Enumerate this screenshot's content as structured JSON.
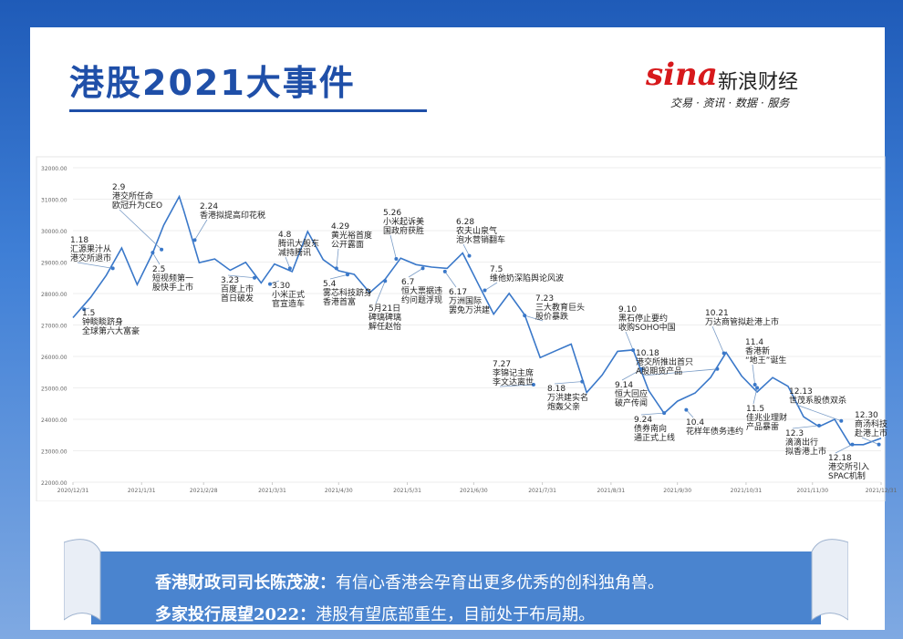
{
  "header": {
    "title": "港股2021大事件",
    "brand_logo": "sina",
    "brand": "新浪财经",
    "brand_tagline": "交易 · 资讯 · 数据 · 服务"
  },
  "chart_data": {
    "type": "line",
    "color": "#3a78c9",
    "x": [
      "2020/12/31",
      "2021/1/8",
      "2021/1/15",
      "2021/1/22",
      "2021/1/29",
      "2021/2/5",
      "2021/2/10",
      "2021/2/17",
      "2021/2/19",
      "2021/2/26",
      "2021/3/5",
      "2021/3/12",
      "2021/3/19",
      "2021/3/26",
      "2021/4/1",
      "2021/4/9",
      "2021/4/16",
      "2021/4/23",
      "2021/4/30",
      "2021/5/7",
      "2021/5/14",
      "2021/5/21",
      "2021/5/28",
      "2021/6/4",
      "2021/6/11",
      "2021/6/18",
      "2021/6/25",
      "2021/7/2",
      "2021/7/9",
      "2021/7/16",
      "2021/7/23",
      "2021/7/30",
      "2021/8/6",
      "2021/8/13",
      "2021/8/20",
      "2021/8/27",
      "2021/9/3",
      "2021/9/10",
      "2021/9/17",
      "2021/9/24",
      "2021/9/30",
      "2021/10/8",
      "2021/10/15",
      "2021/10/22",
      "2021/10/29",
      "2021/11/5",
      "2021/11/12",
      "2021/11/19",
      "2021/11/26",
      "2021/12/3",
      "2021/12/10",
      "2021/12/17",
      "2021/12/23",
      "2021/12/31"
    ],
    "values": [
      27231,
      27878,
      28573,
      29447,
      28284,
      29289,
      30173,
      31085,
      30644,
      28980,
      29098,
      28740,
      28990,
      28336,
      28939,
      28699,
      29970,
      29078,
      28725,
      28610,
      28027,
      28458,
      29124,
      28918,
      28842,
      28801,
      29288,
      28310,
      27344,
      28004,
      27321,
      25961,
      26179,
      26391,
      24849,
      25407,
      26163,
      26205,
      24920,
      24192,
      24576,
      24838,
      25331,
      26126,
      25377,
      24870,
      25327,
      25049,
      24080,
      23767,
      24000,
      23193,
      23193,
      23398
    ],
    "xlim": [
      "2020/12/31",
      "2021/12/31"
    ],
    "xticks": [
      "2020/12/31",
      "2021/1/31",
      "2021/2/28",
      "2021/3/31",
      "2021/4/30",
      "2021/5/31",
      "2021/6/30",
      "2021/7/31",
      "2021/8/31",
      "2021/9/30",
      "2021/10/31",
      "2021/11/30",
      "2021/12/31"
    ],
    "ylim": [
      22000,
      32000
    ],
    "yticks": [
      {
        "value": 22000,
        "label": "22000.00"
      },
      {
        "value": 23000,
        "label": "23000.00"
      },
      {
        "value": 24000,
        "label": "24000.00"
      },
      {
        "value": 25000,
        "label": "25000.00"
      },
      {
        "value": 26000,
        "label": "26000.00"
      },
      {
        "value": 27000,
        "label": "27000.00"
      },
      {
        "value": 28000,
        "label": "28000.00"
      },
      {
        "value": 29000,
        "label": "29000.00"
      },
      {
        "value": 30000,
        "label": "30000.00"
      },
      {
        "value": 31000,
        "label": "31000.00"
      },
      {
        "value": 32000,
        "label": "32000.00"
      }
    ],
    "grid": true,
    "annotations": [
      {
        "x": "2021/1/5",
        "y": 27500,
        "text": [
          "1.5",
          "钟睒睒跻身",
          "全球第六大富豪"
        ]
      },
      {
        "x": "2021/1/18",
        "y": 28800,
        "text": [
          "1.18",
          "汇源果汁从",
          "港交所退市"
        ]
      },
      {
        "x": "2021/2/9",
        "y": 29400,
        "text": [
          "2.9",
          "港交所任命",
          "欧冠升为CEO"
        ]
      },
      {
        "x": "2021/2/5",
        "y": 29300,
        "text": [
          "2.5",
          "短视频第一",
          "股快手上市"
        ]
      },
      {
        "x": "2021/2/24",
        "y": 29700,
        "text": [
          "2.24",
          "香港拟提高印花税"
        ]
      },
      {
        "x": "2021/3/23",
        "y": 28500,
        "text": [
          "3.23",
          "百度上市",
          "首日破发"
        ]
      },
      {
        "x": "2021/3/30",
        "y": 28300,
        "text": [
          "3.30",
          "小米正式",
          "官宣造车"
        ]
      },
      {
        "x": "2021/4/8",
        "y": 28800,
        "text": [
          "4.8",
          "腾讯大股东",
          "减持腾讯"
        ]
      },
      {
        "x": "2021/4/29",
        "y": 28800,
        "text": [
          "4.29",
          "黄光裕首度",
          "公开露面"
        ]
      },
      {
        "x": "2021/5/4",
        "y": 28600,
        "text": [
          "5.4",
          "雾芯科技跻身",
          "香港首富"
        ]
      },
      {
        "x": "2021/5/21",
        "y": 28400,
        "text": [
          "5月21日",
          "碑璃碑璃",
          "解任赵怡"
        ]
      },
      {
        "x": "2021/5/26",
        "y": 29100,
        "text": [
          "5.26",
          "小米起诉美",
          "国政府获胜"
        ]
      },
      {
        "x": "2021/6/7",
        "y": 28800,
        "text": [
          "6.7",
          "恒大票据违",
          "约问题浮现"
        ]
      },
      {
        "x": "2021/6/17",
        "y": 28700,
        "text": [
          "6.17",
          "万洲国际",
          "罢免万洪建"
        ]
      },
      {
        "x": "2021/6/28",
        "y": 29200,
        "text": [
          "6.28",
          "农夫山泉气",
          "泡水营销翻车"
        ]
      },
      {
        "x": "2021/7/5",
        "y": 28100,
        "text": [
          "7.5",
          "维他奶深陷舆论风波"
        ]
      },
      {
        "x": "2021/7/23",
        "y": 27300,
        "text": [
          "7.23",
          "三大教育巨头",
          "股价暴跌"
        ]
      },
      {
        "x": "2021/7/27",
        "y": 25100,
        "text": [
          "7.27",
          "李锦记主席",
          "李文达离世"
        ]
      },
      {
        "x": "2021/8/18",
        "y": 25200,
        "text": [
          "8.18",
          "万洪建实名",
          "炮轰父亲"
        ]
      },
      {
        "x": "2021/9/10",
        "y": 26200,
        "text": [
          "9.10",
          "黑石停止要约",
          "收购SOHO中国"
        ]
      },
      {
        "x": "2021/9/14",
        "y": 25600,
        "text": [
          "9.14",
          "恒大回应",
          "破产传闻"
        ]
      },
      {
        "x": "2021/9/24",
        "y": 24200,
        "text": [
          "9.24",
          "债券南向",
          "通正式上线"
        ]
      },
      {
        "x": "2021/10/18",
        "y": 25600,
        "text": [
          "10.18",
          "港交所推出首只",
          "A股期货产品"
        ]
      },
      {
        "x": "2021/10/4",
        "y": 24300,
        "text": [
          "10.4",
          "花样年债务违约"
        ]
      },
      {
        "x": "2021/10/21",
        "y": 26100,
        "text": [
          "10.21",
          "万达商管拟赴港上市"
        ]
      },
      {
        "x": "2021/11/4",
        "y": 25100,
        "text": [
          "11.4",
          "香港新",
          "“地王”诞生"
        ]
      },
      {
        "x": "2021/11/5",
        "y": 25000,
        "text": [
          "11.5",
          "佳兆业理财",
          "产品暴雷"
        ]
      },
      {
        "x": "2021/12/13",
        "y": 23950,
        "text": [
          "12.13",
          "世茂系股债双杀"
        ]
      },
      {
        "x": "2021/12/3",
        "y": 23800,
        "text": [
          "12.3",
          "滴滴出行",
          "拟香港上市"
        ]
      },
      {
        "x": "2021/12/30",
        "y": 23200,
        "text": [
          "12.30",
          "商汤科技",
          "赴港上市"
        ]
      },
      {
        "x": "2021/12/18",
        "y": 23200,
        "text": [
          "12.18",
          "港交所引入",
          "SPAC机制"
        ]
      }
    ]
  },
  "footer": {
    "lines": [
      {
        "speaker": "香港财政司司长陈茂波：",
        "text": "有信心香港会孕育出更多优秀的创科独角兽。"
      },
      {
        "speaker": "多家投行展望2022：",
        "text": "港股有望底部重生，目前处于布局期。"
      }
    ]
  }
}
